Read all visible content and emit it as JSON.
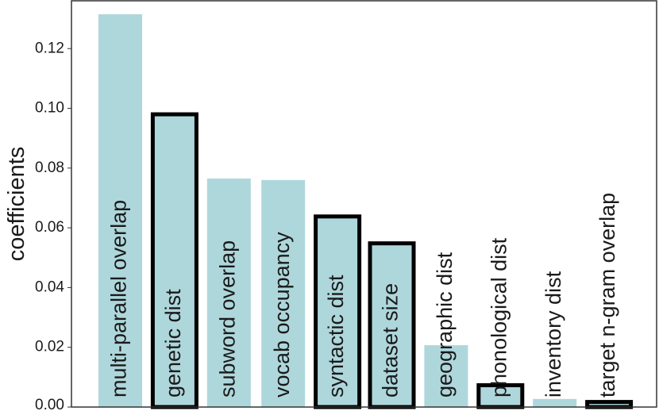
{
  "chart_data": {
    "type": "bar",
    "title": "",
    "xlabel": "",
    "ylabel": "coefficients",
    "ylim": [
      0,
      0.136
    ],
    "yticks": [
      "0.00",
      "0.02",
      "0.04",
      "0.06",
      "0.08",
      "0.10",
      "0.12"
    ],
    "grid": false,
    "colors": {
      "bar_fill": "#aed7dc",
      "bar_outline": "#000000",
      "axis": "#333333"
    },
    "bars": [
      {
        "label": "multi-parallel overlap",
        "value": 0.1315,
        "outlined": false
      },
      {
        "label": "genetic dist",
        "value": 0.098,
        "outlined": true
      },
      {
        "label": "subword overlap",
        "value": 0.0765,
        "outlined": false
      },
      {
        "label": "vocab occupancy",
        "value": 0.076,
        "outlined": false
      },
      {
        "label": "syntactic dist",
        "value": 0.0638,
        "outlined": true
      },
      {
        "label": "dataset size",
        "value": 0.0548,
        "outlined": true
      },
      {
        "label": "geographic dist",
        "value": 0.0207,
        "outlined": false
      },
      {
        "label": "phonological dist",
        "value": 0.0073,
        "outlined": true
      },
      {
        "label": "inventory dist",
        "value": 0.0027,
        "outlined": false
      },
      {
        "label": "target n-gram overlap",
        "value": 0.0017,
        "outlined": true
      }
    ]
  }
}
